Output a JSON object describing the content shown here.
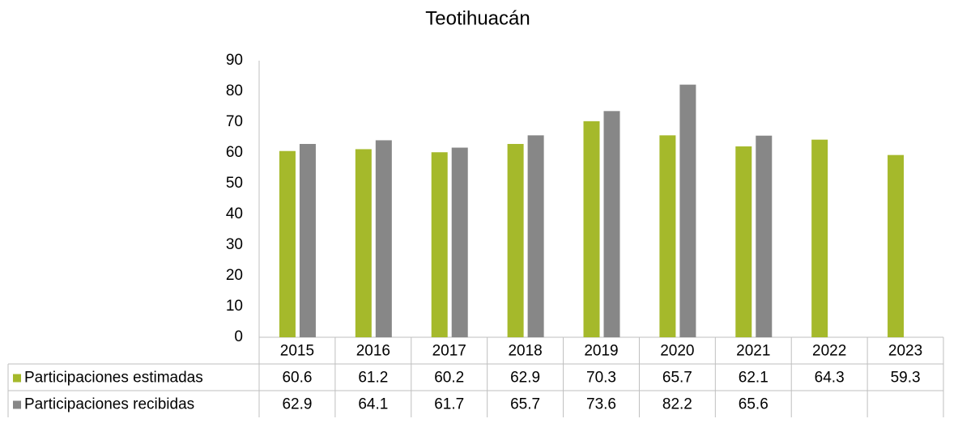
{
  "chart_data": {
    "type": "bar",
    "title": "Teotihuacán",
    "categories": [
      "2015",
      "2016",
      "2017",
      "2018",
      "2019",
      "2020",
      "2021",
      "2022",
      "2023"
    ],
    "series": [
      {
        "name": "Participaciones estimadas",
        "color": "#a5b92b",
        "values": [
          60.6,
          61.2,
          60.2,
          62.9,
          70.3,
          65.7,
          62.1,
          64.3,
          59.3
        ]
      },
      {
        "name": "Participaciones recibidas",
        "color": "#878787",
        "values": [
          62.9,
          64.1,
          61.7,
          65.7,
          73.6,
          82.2,
          65.6,
          null,
          null
        ]
      }
    ],
    "ylim": [
      0,
      90
    ],
    "yticks": [
      0,
      10,
      20,
      30,
      40,
      50,
      60,
      70,
      80,
      90
    ],
    "grid": false,
    "data_table": true
  }
}
